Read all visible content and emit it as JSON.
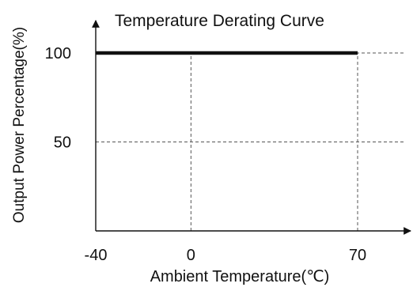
{
  "chart_data": {
    "type": "line",
    "title": "Temperature Derating Curve",
    "xlabel": "Ambient Temperature(℃)",
    "ylabel": "Output Power  Percentage(%)",
    "x_ticks": [
      -40,
      0,
      70
    ],
    "y_ticks": [
      50,
      100
    ],
    "xlim": [
      -40,
      80
    ],
    "ylim": [
      0,
      110
    ],
    "grid": true,
    "series": [
      {
        "x": [
          -40,
          70
        ],
        "y": [
          100,
          100
        ]
      }
    ],
    "colors": {
      "line": "#111111",
      "axis": "#111111",
      "grid": "#555555"
    }
  }
}
